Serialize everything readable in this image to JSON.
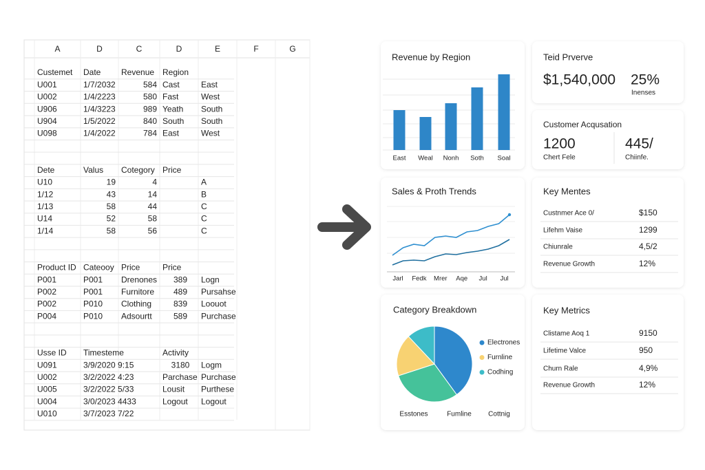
{
  "sheet": {
    "columns": [
      "A",
      "D",
      "C",
      "D",
      "E",
      "F",
      "G"
    ],
    "rows": [
      [
        "Custemet",
        "Date",
        "Revenue",
        "Region",
        null
      ],
      [
        "U001",
        "1/7/2032",
        584,
        "Cast",
        "East"
      ],
      [
        "U002",
        "1/4/2223",
        580,
        "Fast",
        "West"
      ],
      [
        "U906",
        "1/4/3223",
        989,
        "Yeath",
        "South"
      ],
      [
        "U904",
        "1/5/2022",
        840,
        "South",
        "South"
      ],
      [
        "U098",
        "1/4/2022",
        784,
        "East",
        "West"
      ],
      [
        null,
        null,
        null,
        null,
        null
      ],
      [
        null,
        null,
        null,
        null,
        null
      ],
      [
        "Dete",
        "Valus",
        "Cotegory",
        "Price",
        null
      ],
      [
        "U10",
        19,
        4,
        null,
        "A"
      ],
      [
        "1/12",
        43,
        14,
        null,
        "B"
      ],
      [
        "1/13",
        58,
        44,
        null,
        "C"
      ],
      [
        "U14",
        52,
        58,
        null,
        "C"
      ],
      [
        "1/14",
        58,
        56,
        null,
        "C"
      ],
      [
        null,
        null,
        null,
        null,
        null
      ],
      [
        null,
        null,
        null,
        null,
        null
      ],
      [
        "Product ID",
        "Cateooy",
        "Price",
        "Price",
        null
      ],
      [
        "P001",
        "P001",
        "Drenones",
        389,
        "Logn"
      ],
      [
        "P002",
        "P001",
        "Furnitore",
        489,
        "Pursahse"
      ],
      [
        "P002",
        "P010",
        "Clothing",
        839,
        "Loouot"
      ],
      [
        "P004",
        "P010",
        "Adsourtt",
        589,
        "Purchase"
      ],
      [
        null,
        null,
        null,
        null,
        null
      ],
      [
        null,
        null,
        null,
        null,
        null
      ],
      [
        "Usse ID",
        "Timesteme",
        null,
        "Activity",
        null
      ],
      [
        "U091",
        "3/9/2020 9:15",
        null,
        3180,
        "Logm"
      ],
      [
        "U002",
        "3/2/2022 4:23",
        null,
        "Parchase",
        "Purchase"
      ],
      [
        "U005",
        "3/2/2022 5/33",
        null,
        "Lousit",
        "Purthese"
      ],
      [
        "U004",
        "3/0/2023 4433",
        null,
        "Logout",
        "Logout"
      ],
      [
        "U010",
        "3/7/2023 7/22",
        null,
        null,
        null
      ]
    ]
  },
  "chart_data": [
    {
      "type": "bar",
      "title": "Revenue by Region",
      "categories": [
        "East",
        "Weal",
        "Nonh",
        "Soth",
        "Soal"
      ],
      "values": [
        58,
        48,
        68,
        91,
        110
      ],
      "color": "#2e86c8"
    },
    {
      "type": "line",
      "title": "Sales & Proth Trends",
      "categories": [
        "Jarl",
        null,
        "Fedk",
        null,
        "Mrer",
        null,
        "Aqe",
        null,
        "Jul",
        null,
        "Jul",
        null
      ],
      "series": [
        {
          "color": "#2e8fd0",
          "values": [
            24,
            35,
            40,
            38,
            50,
            52,
            50,
            58,
            60,
            66,
            70,
            83
          ]
        },
        {
          "color": "#1f6f9f",
          "values": [
            10,
            16,
            17,
            16,
            22,
            26,
            25,
            28,
            30,
            33,
            38,
            47
          ]
        }
      ]
    },
    {
      "type": "pie",
      "title": "Category Breakdown",
      "categories": [
        "Electrones",
        null,
        "Furnline",
        "Codhing"
      ],
      "values": [
        40,
        30,
        18,
        12
      ],
      "colors": [
        "#2e88cc",
        "#45c29a",
        "#f8d272",
        "#3dbcc8"
      ],
      "footer_labels": [
        "Esstones",
        "Fumline",
        "Cottnig"
      ]
    }
  ],
  "cards": {
    "total": {
      "title": "Teid Prverve",
      "value": "$1,540,000",
      "change": "25%",
      "change_label": "Inenses"
    },
    "acquisition": {
      "title": "Customer Acqusation",
      "value": "1200",
      "value_label": "Chert Fele",
      "secondary": "445/",
      "secondary_label": "Chiinfe."
    },
    "key_metrics": [
      {
        "title": "Key Mentes",
        "rows": [
          [
            "Custnmer Ace 0/",
            "$150"
          ],
          [
            "Lifehm Vaise",
            "1299"
          ],
          [
            "Chiunrale",
            "4,5/2"
          ],
          [
            "Revenue Growth",
            "12%"
          ]
        ]
      },
      {
        "title": "Key Metrics",
        "rows": [
          [
            "Clistame Aoq 1",
            "9150"
          ],
          [
            "Lifetime Valce",
            "950"
          ],
          [
            "Churn Rale",
            "4,9%"
          ],
          [
            "Revenue Growth",
            "12%"
          ]
        ]
      }
    ]
  }
}
